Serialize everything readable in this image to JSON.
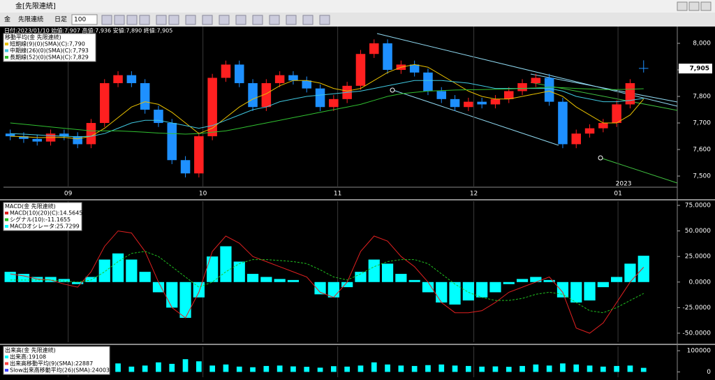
{
  "window_title": "金[先限連続]",
  "toolbar": {
    "symbol": "金",
    "contract": "先限連続",
    "period": "日足",
    "count": "100"
  },
  "info": "日付:2023/01/10 始値:7,907 高値:7,936 安値:7,890 終値:7,905",
  "price_chart": {
    "type": "candlestick",
    "legend_title": "移動平均(金 先限連続)",
    "xlim": [
      -0.5,
      49.5
    ],
    "xticks": [
      {
        "value": 4.3,
        "label": "09"
      },
      {
        "value": 14.3,
        "label": "10"
      },
      {
        "value": 24.3,
        "label": "11"
      },
      {
        "value": 34.4,
        "label": "12"
      },
      {
        "value": 45.1,
        "label": "01"
      }
    ],
    "year_label": "2023",
    "ylim": [
      7458,
      8058
    ],
    "yticks": [
      {
        "value": 8000,
        "label": "8,000"
      },
      {
        "value": 7900,
        "label": "7,900"
      },
      {
        "value": 7800,
        "label": "7,800"
      },
      {
        "value": 7700,
        "label": "7,700"
      },
      {
        "value": 7600,
        "label": "7,600"
      },
      {
        "value": 7500,
        "label": "7,500"
      }
    ],
    "last_price": {
      "value": 7905,
      "label": "7,905"
    },
    "up_color": "#ff2020",
    "down_color": "#1e90ff",
    "open": [
      7660,
      7650,
      7640,
      7630,
      7660,
      7650,
      7620,
      7700,
      7850,
      7880,
      7850,
      7750,
      7700,
      7560,
      7510,
      7650,
      7870,
      7920,
      7850,
      7760,
      7850,
      7880,
      7860,
      7830,
      7760,
      7790,
      7840,
      7960,
      8000,
      7900,
      7920,
      7890,
      7820,
      7790,
      7760,
      7780,
      7770,
      7790,
      7820,
      7850,
      7870,
      7780,
      7620,
      7660,
      7680,
      7700,
      7770,
      7907
    ],
    "high": [
      7675,
      7665,
      7655,
      7675,
      7675,
      7665,
      7715,
      7865,
      7895,
      7895,
      7865,
      7765,
      7715,
      7575,
      7665,
      7885,
      7935,
      7935,
      7865,
      7865,
      7895,
      7895,
      7875,
      7845,
      7805,
      7855,
      7975,
      8015,
      8015,
      7935,
      7935,
      7905,
      7835,
      7805,
      7795,
      7795,
      7805,
      7835,
      7865,
      7885,
      7885,
      7795,
      7675,
      7695,
      7715,
      7785,
      7865,
      7936
    ],
    "low": [
      7635,
      7625,
      7615,
      7615,
      7635,
      7605,
      7605,
      7685,
      7835,
      7835,
      7735,
      7685,
      7545,
      7495,
      7495,
      7635,
      7855,
      7835,
      7745,
      7745,
      7835,
      7845,
      7815,
      7745,
      7745,
      7775,
      7825,
      7945,
      7885,
      7885,
      7875,
      7805,
      7775,
      7745,
      7745,
      7755,
      7755,
      7775,
      7805,
      7835,
      7765,
      7605,
      7605,
      7645,
      7665,
      7685,
      7755,
      7890
    ],
    "close": [
      7650,
      7640,
      7630,
      7660,
      7650,
      7620,
      7700,
      7850,
      7880,
      7850,
      7750,
      7700,
      7560,
      7510,
      7650,
      7870,
      7920,
      7850,
      7760,
      7850,
      7880,
      7860,
      7830,
      7760,
      7790,
      7840,
      7960,
      8000,
      7900,
      7920,
      7890,
      7820,
      7790,
      7760,
      7780,
      7770,
      7790,
      7820,
      7850,
      7870,
      7780,
      7620,
      7660,
      7680,
      7700,
      7770,
      7850,
      7905
    ],
    "series": [
      {
        "name": "短期線(9)(0)(SMA)(C):7,790",
        "color": "#e8c000",
        "values": [
          7650,
          7648,
          7645,
          7645,
          7646,
          7640,
          7650,
          7680,
          7720,
          7760,
          7780,
          7770,
          7740,
          7700,
          7660,
          7680,
          7720,
          7760,
          7790,
          7810,
          7840,
          7860,
          7860,
          7850,
          7830,
          7820,
          7830,
          7860,
          7890,
          7910,
          7920,
          7910,
          7880,
          7850,
          7820,
          7800,
          7790,
          7790,
          7800,
          7810,
          7820,
          7800,
          7760,
          7730,
          7700,
          7700,
          7730,
          7790
        ]
      },
      {
        "name": "中期線(26)(0)(SMA)(C):7,793",
        "color": "#40c8e0",
        "values": [
          7660,
          7658,
          7655,
          7652,
          7650,
          7648,
          7650,
          7660,
          7680,
          7700,
          7710,
          7710,
          7700,
          7690,
          7680,
          7690,
          7710,
          7730,
          7750,
          7760,
          7780,
          7790,
          7800,
          7805,
          7810,
          7815,
          7820,
          7830,
          7840,
          7850,
          7860,
          7860,
          7860,
          7855,
          7850,
          7840,
          7830,
          7830,
          7830,
          7830,
          7830,
          7820,
          7800,
          7790,
          7780,
          7780,
          7785,
          7793
        ]
      },
      {
        "name": "長期線(52)(0)(SMA)(C):7,829",
        "color": "#30c030",
        "values": [
          7700,
          7695,
          7690,
          7685,
          7680,
          7675,
          7670,
          7670,
          7670,
          7668,
          7665,
          7662,
          7660,
          7658,
          7660,
          7665,
          7670,
          7680,
          7690,
          7700,
          7710,
          7720,
          7730,
          7740,
          7750,
          7760,
          7770,
          7785,
          7800,
          7810,
          7815,
          7820,
          7822,
          7824,
          7825,
          7826,
          7827,
          7828,
          7830,
          7832,
          7835,
          7833,
          7830,
          7828,
          7826,
          7826,
          7827,
          7829
        ]
      }
    ]
  },
  "macd_chart": {
    "type": "macd",
    "legend_title": "MACD(金 先限連続)",
    "ylim": [
      -58.9,
      79.1
    ],
    "yticks": [
      {
        "value": 75,
        "label": "75.0000"
      },
      {
        "value": 50,
        "label": "50.0000"
      },
      {
        "value": 25,
        "label": "25.0000"
      },
      {
        "value": 0,
        "label": "0.0000"
      },
      {
        "value": -25,
        "label": "-25.0000"
      },
      {
        "value": -50,
        "label": "-50.0000"
      }
    ],
    "histogram": {
      "name": "MACDオシレータ:25.7299",
      "color": "#00ffff",
      "values": [
        10,
        8,
        5,
        5,
        3,
        -2,
        5,
        22,
        28,
        22,
        10,
        -10,
        -25,
        -35,
        -15,
        25,
        35,
        20,
        8,
        5,
        3,
        2,
        0,
        -12,
        -15,
        -5,
        10,
        22,
        18,
        8,
        2,
        -10,
        -20,
        -22,
        -18,
        -15,
        -10,
        -2,
        3,
        5,
        2,
        -15,
        -20,
        -18,
        -5,
        5,
        18,
        25.7299
      ]
    },
    "series": [
      {
        "name": "MACD(10)(20)(C):14.5645",
        "color": "#e02020",
        "dash": false,
        "values": [
          8,
          6,
          3,
          2,
          -2,
          -5,
          10,
          35,
          50,
          48,
          30,
          0,
          -25,
          -35,
          -10,
          30,
          45,
          38,
          25,
          20,
          15,
          10,
          5,
          -10,
          -15,
          0,
          30,
          45,
          40,
          25,
          15,
          0,
          -20,
          -30,
          -30,
          -28,
          -20,
          -10,
          -5,
          0,
          5,
          -10,
          -45,
          -50,
          -40,
          -20,
          0,
          14.5645
        ]
      },
      {
        "name": "シグナル(10):-11.1655",
        "color": "#20c020",
        "dash": true,
        "values": [
          2,
          2,
          2,
          2,
          1,
          0,
          2,
          10,
          20,
          28,
          30,
          25,
          15,
          5,
          -5,
          0,
          10,
          18,
          22,
          22,
          21,
          20,
          18,
          12,
          5,
          2,
          8,
          15,
          20,
          22,
          22,
          18,
          8,
          -2,
          -10,
          -15,
          -18,
          -18,
          -16,
          -12,
          -10,
          -12,
          -20,
          -28,
          -30,
          -25,
          -18,
          -11.1655
        ]
      }
    ]
  },
  "volume_chart": {
    "type": "volume",
    "legend_title": "出来高(金 先限連続)",
    "ylim": [
      -25000,
      120000
    ],
    "yticks": [
      {
        "value": 100000,
        "label": "100000"
      },
      0
    ],
    "histogram": {
      "name": "出来高:19108",
      "color": "#00ffff",
      "values": [
        20000,
        25000,
        18000,
        22000,
        30000,
        15000,
        28000,
        35000,
        40000,
        25000,
        30000,
        45000,
        38000,
        60000,
        50000,
        30000,
        35000,
        25000,
        22000,
        28000,
        30000,
        26000,
        24000,
        20000,
        27000,
        25000,
        30000,
        45000,
        35000,
        30000,
        28000,
        32000,
        35000,
        30000,
        28000,
        25000,
        26000,
        24000,
        28000,
        35000,
        30000,
        40000,
        35000,
        30000,
        25000,
        28000,
        30000,
        19108
      ]
    },
    "series": [
      {
        "name": "出来高移動平均(9)(SMA):22887",
        "color": "#ff4040"
      },
      {
        "name": "Slow出来高移動平均(26)(SMA):24003",
        "color": "#4040ff"
      }
    ]
  }
}
